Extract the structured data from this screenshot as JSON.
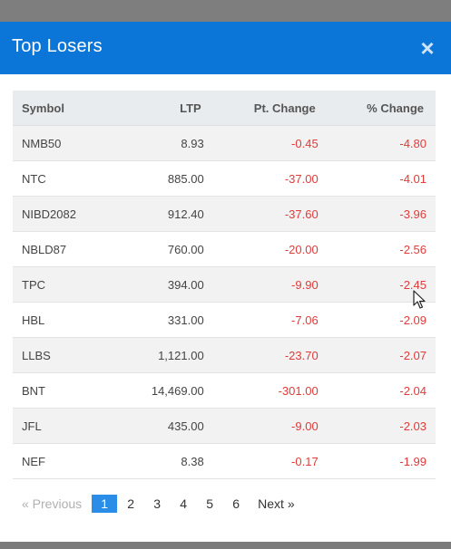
{
  "modal": {
    "title": "Top Losers",
    "close_label": "×"
  },
  "table": {
    "headers": {
      "symbol": "Symbol",
      "ltp": "LTP",
      "pt_change": "Pt. Change",
      "pct_change": "% Change"
    },
    "rows": [
      {
        "symbol": "NMB50",
        "ltp": "8.93",
        "pt_change": "-0.45",
        "pct_change": "-4.80"
      },
      {
        "symbol": "NTC",
        "ltp": "885.00",
        "pt_change": "-37.00",
        "pct_change": "-4.01"
      },
      {
        "symbol": "NIBD2082",
        "ltp": "912.40",
        "pt_change": "-37.60",
        "pct_change": "-3.96"
      },
      {
        "symbol": "NBLD87",
        "ltp": "760.00",
        "pt_change": "-20.00",
        "pct_change": "-2.56"
      },
      {
        "symbol": "TPC",
        "ltp": "394.00",
        "pt_change": "-9.90",
        "pct_change": "-2.45"
      },
      {
        "symbol": "HBL",
        "ltp": "331.00",
        "pt_change": "-7.06",
        "pct_change": "-2.09"
      },
      {
        "symbol": "LLBS",
        "ltp": "1,121.00",
        "pt_change": "-23.70",
        "pct_change": "-2.07"
      },
      {
        "symbol": "BNT",
        "ltp": "14,469.00",
        "pt_change": "-301.00",
        "pct_change": "-2.04"
      },
      {
        "symbol": "JFL",
        "ltp": "435.00",
        "pt_change": "-9.00",
        "pct_change": "-2.03"
      },
      {
        "symbol": "NEF",
        "ltp": "8.38",
        "pt_change": "-0.17",
        "pct_change": "-1.99"
      }
    ]
  },
  "pagination": {
    "previous_label": "«  Previous",
    "next_label": "Next  »",
    "pages": [
      "1",
      "2",
      "3",
      "4",
      "5",
      "6"
    ],
    "current_page": "1"
  },
  "colors": {
    "header_bg": "#0b76d8",
    "negative": "#e03b3b",
    "active_page": "#2a8ee8"
  },
  "icons": {
    "close": "close-icon",
    "cursor": "mouse-cursor-icon"
  }
}
